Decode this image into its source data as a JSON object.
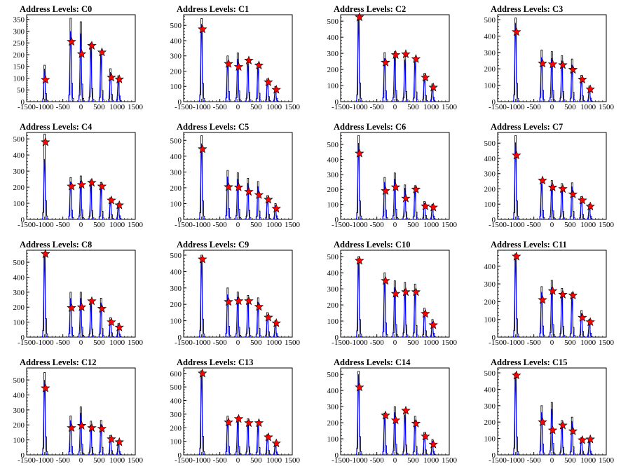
{
  "colors": {
    "histogram": "#000000",
    "fit": "#0000ff",
    "marker_fill": "#ff0000",
    "marker_stroke": "#000000"
  },
  "x_ticks": [
    "-1500",
    "-1000",
    "-500",
    "0",
    "500",
    "1000",
    "1500"
  ],
  "chart_data": [
    {
      "type": "bar",
      "title": "Address Levels: C0",
      "xlim": [
        -1500,
        1500
      ],
      "ylim": [
        0,
        370
      ],
      "yticks": [
        0,
        50,
        100,
        150,
        200,
        250,
        300,
        350
      ],
      "peaks": [
        {
          "x": -1000,
          "hist": 155,
          "fit": 140,
          "marker": 93
        },
        {
          "x": -280,
          "hist": 355,
          "fit": 300,
          "marker": 255
        },
        {
          "x": 0,
          "hist": 340,
          "fit": 290,
          "marker": 203
        },
        {
          "x": 280,
          "hist": 250,
          "fit": 230,
          "marker": 238
        },
        {
          "x": 560,
          "hist": 215,
          "fit": 200,
          "marker": 210
        },
        {
          "x": 820,
          "hist": 140,
          "fit": 125,
          "marker": 103
        },
        {
          "x": 1040,
          "hist": 110,
          "fit": 100,
          "marker": 95
        }
      ]
    },
    {
      "type": "bar",
      "title": "Address Levels: C1",
      "xlim": [
        -1500,
        1500
      ],
      "ylim": [
        0,
        570
      ],
      "yticks": [
        0,
        100,
        200,
        300,
        400,
        500
      ],
      "peaks": [
        {
          "x": -1000,
          "hist": 545,
          "fit": 510,
          "marker": 475
        },
        {
          "x": -280,
          "hist": 300,
          "fit": 260,
          "marker": 248
        },
        {
          "x": 0,
          "hist": 320,
          "fit": 280,
          "marker": 228
        },
        {
          "x": 280,
          "hist": 280,
          "fit": 250,
          "marker": 270
        },
        {
          "x": 560,
          "hist": 250,
          "fit": 230,
          "marker": 238
        },
        {
          "x": 820,
          "hist": 150,
          "fit": 135,
          "marker": 128
        },
        {
          "x": 1040,
          "hist": 100,
          "fit": 90,
          "marker": 78
        }
      ]
    },
    {
      "type": "bar",
      "title": "Address Levels: C2",
      "xlim": [
        -1500,
        1500
      ],
      "ylim": [
        0,
        540
      ],
      "yticks": [
        0,
        100,
        200,
        300,
        400,
        500
      ],
      "peaks": [
        {
          "x": -1000,
          "hist": 530,
          "fit": 515,
          "marker": 525
        },
        {
          "x": -280,
          "hist": 305,
          "fit": 270,
          "marker": 243
        },
        {
          "x": 0,
          "hist": 310,
          "fit": 280,
          "marker": 290
        },
        {
          "x": 280,
          "hist": 290,
          "fit": 260,
          "marker": 295
        },
        {
          "x": 560,
          "hist": 275,
          "fit": 250,
          "marker": 265
        },
        {
          "x": 820,
          "hist": 175,
          "fit": 155,
          "marker": 150
        },
        {
          "x": 1040,
          "hist": 110,
          "fit": 95,
          "marker": 88
        }
      ]
    },
    {
      "type": "bar",
      "title": "Address Levels: C3",
      "xlim": [
        -1500,
        1500
      ],
      "ylim": [
        0,
        530
      ],
      "yticks": [
        0,
        100,
        200,
        300,
        400,
        500
      ],
      "peaks": [
        {
          "x": -1000,
          "hist": 510,
          "fit": 480,
          "marker": 425
        },
        {
          "x": -280,
          "hist": 315,
          "fit": 270,
          "marker": 233
        },
        {
          "x": 0,
          "hist": 305,
          "fit": 265,
          "marker": 228
        },
        {
          "x": 280,
          "hist": 280,
          "fit": 250,
          "marker": 223
        },
        {
          "x": 560,
          "hist": 260,
          "fit": 225,
          "marker": 195
        },
        {
          "x": 820,
          "hist": 160,
          "fit": 140,
          "marker": 135
        },
        {
          "x": 1040,
          "hist": 95,
          "fit": 85,
          "marker": 75
        }
      ]
    },
    {
      "type": "bar",
      "title": "Address Levels: C4",
      "xlim": [
        -1500,
        1500
      ],
      "ylim": [
        0,
        540
      ],
      "yticks": [
        0,
        100,
        200,
        300,
        400,
        500
      ],
      "peaks": [
        {
          "x": -1000,
          "hist": 530,
          "fit": 375,
          "marker": 480
        },
        {
          "x": -280,
          "hist": 260,
          "fit": 235,
          "marker": 205
        },
        {
          "x": 0,
          "hist": 270,
          "fit": 240,
          "marker": 215
        },
        {
          "x": 280,
          "hist": 245,
          "fit": 220,
          "marker": 228
        },
        {
          "x": 560,
          "hist": 230,
          "fit": 210,
          "marker": 205
        },
        {
          "x": 820,
          "hist": 135,
          "fit": 120,
          "marker": 118
        },
        {
          "x": 1040,
          "hist": 100,
          "fit": 90,
          "marker": 88
        }
      ]
    },
    {
      "type": "bar",
      "title": "Address Levels: C5",
      "xlim": [
        -1500,
        1500
      ],
      "ylim": [
        0,
        550
      ],
      "yticks": [
        0,
        100,
        200,
        300,
        400,
        500
      ],
      "peaks": [
        {
          "x": -1000,
          "hist": 530,
          "fit": 480,
          "marker": 445
        },
        {
          "x": -280,
          "hist": 310,
          "fit": 270,
          "marker": 205
        },
        {
          "x": 0,
          "hist": 295,
          "fit": 255,
          "marker": 203
        },
        {
          "x": 280,
          "hist": 260,
          "fit": 230,
          "marker": 175
        },
        {
          "x": 560,
          "hist": 240,
          "fit": 210,
          "marker": 155
        },
        {
          "x": 820,
          "hist": 150,
          "fit": 130,
          "marker": 125
        },
        {
          "x": 1040,
          "hist": 100,
          "fit": 88,
          "marker": 68
        }
      ]
    },
    {
      "type": "bar",
      "title": "Address Levels: C6",
      "xlim": [
        -1500,
        1500
      ],
      "ylim": [
        0,
        580
      ],
      "yticks": [
        0,
        100,
        200,
        300,
        400,
        500
      ],
      "peaks": [
        {
          "x": -1000,
          "hist": 560,
          "fit": 510,
          "marker": 440
        },
        {
          "x": -280,
          "hist": 280,
          "fit": 250,
          "marker": 190
        },
        {
          "x": 0,
          "hist": 310,
          "fit": 270,
          "marker": 215
        },
        {
          "x": 280,
          "hist": 230,
          "fit": 210,
          "marker": 140
        },
        {
          "x": 560,
          "hist": 225,
          "fit": 205,
          "marker": 200
        },
        {
          "x": 820,
          "hist": 120,
          "fit": 110,
          "marker": 88
        },
        {
          "x": 1040,
          "hist": 100,
          "fit": 90,
          "marker": 80
        }
      ]
    },
    {
      "type": "bar",
      "title": "Address Levels: C7",
      "xlim": [
        -1500,
        1500
      ],
      "ylim": [
        0,
        570
      ],
      "yticks": [
        0,
        100,
        200,
        300,
        400,
        500
      ],
      "peaks": [
        {
          "x": -1000,
          "hist": 550,
          "fit": 505,
          "marker": 420
        },
        {
          "x": -280,
          "hist": 265,
          "fit": 235,
          "marker": 255
        },
        {
          "x": 0,
          "hist": 255,
          "fit": 225,
          "marker": 210
        },
        {
          "x": 280,
          "hist": 235,
          "fit": 210,
          "marker": 200
        },
        {
          "x": 560,
          "hist": 240,
          "fit": 215,
          "marker": 165
        },
        {
          "x": 820,
          "hist": 150,
          "fit": 135,
          "marker": 125
        },
        {
          "x": 1040,
          "hist": 100,
          "fit": 90,
          "marker": 85
        }
      ]
    },
    {
      "type": "bar",
      "title": "Address Levels: C8",
      "xlim": [
        -1500,
        1500
      ],
      "ylim": [
        0,
        580
      ],
      "yticks": [
        0,
        100,
        200,
        300,
        400,
        500
      ],
      "peaks": [
        {
          "x": -1000,
          "hist": 560,
          "fit": 540,
          "marker": 555
        },
        {
          "x": -280,
          "hist": 300,
          "fit": 260,
          "marker": 195
        },
        {
          "x": 0,
          "hist": 300,
          "fit": 260,
          "marker": 200
        },
        {
          "x": 280,
          "hist": 250,
          "fit": 225,
          "marker": 240
        },
        {
          "x": 560,
          "hist": 260,
          "fit": 230,
          "marker": 190
        },
        {
          "x": 820,
          "hist": 130,
          "fit": 115,
          "marker": 100
        },
        {
          "x": 1040,
          "hist": 90,
          "fit": 80,
          "marker": 65
        }
      ]
    },
    {
      "type": "bar",
      "title": "Address Levels: C9",
      "xlim": [
        -1500,
        1500
      ],
      "ylim": [
        0,
        530
      ],
      "yticks": [
        0,
        100,
        200,
        300,
        400,
        500
      ],
      "peaks": [
        {
          "x": -1000,
          "hist": 500,
          "fit": 480,
          "marker": 475
        },
        {
          "x": -280,
          "hist": 300,
          "fit": 260,
          "marker": 215
        },
        {
          "x": 0,
          "hist": 275,
          "fit": 245,
          "marker": 220
        },
        {
          "x": 280,
          "hist": 255,
          "fit": 230,
          "marker": 220
        },
        {
          "x": 560,
          "hist": 240,
          "fit": 215,
          "marker": 185
        },
        {
          "x": 820,
          "hist": 150,
          "fit": 135,
          "marker": 120
        },
        {
          "x": 1040,
          "hist": 100,
          "fit": 90,
          "marker": 85
        }
      ]
    },
    {
      "type": "bar",
      "title": "Address Levels: C10",
      "xlim": [
        -1500,
        1500
      ],
      "ylim": [
        0,
        540
      ],
      "yticks": [
        0,
        100,
        200,
        300,
        400,
        500
      ],
      "peaks": [
        {
          "x": -1000,
          "hist": 500,
          "fit": 480,
          "marker": 475
        },
        {
          "x": -280,
          "hist": 400,
          "fit": 350,
          "marker": 350
        },
        {
          "x": 0,
          "hist": 350,
          "fit": 310,
          "marker": 270
        },
        {
          "x": 280,
          "hist": 340,
          "fit": 300,
          "marker": 280
        },
        {
          "x": 560,
          "hist": 330,
          "fit": 295,
          "marker": 280
        },
        {
          "x": 820,
          "hist": 180,
          "fit": 160,
          "marker": 145
        },
        {
          "x": 1040,
          "hist": 110,
          "fit": 95,
          "marker": 75
        }
      ]
    },
    {
      "type": "bar",
      "title": "Address Levels: C11",
      "xlim": [
        -1500,
        1500
      ],
      "ylim": [
        0,
        490
      ],
      "yticks": [
        0,
        100,
        200,
        300,
        400
      ],
      "peaks": [
        {
          "x": -1000,
          "hist": 470,
          "fit": 450,
          "marker": 455
        },
        {
          "x": -280,
          "hist": 285,
          "fit": 255,
          "marker": 210
        },
        {
          "x": 0,
          "hist": 320,
          "fit": 280,
          "marker": 260
        },
        {
          "x": 280,
          "hist": 275,
          "fit": 250,
          "marker": 240
        },
        {
          "x": 560,
          "hist": 250,
          "fit": 225,
          "marker": 235
        },
        {
          "x": 820,
          "hist": 150,
          "fit": 135,
          "marker": 110
        },
        {
          "x": 1040,
          "hist": 100,
          "fit": 90,
          "marker": 85
        }
      ]
    },
    {
      "type": "bar",
      "title": "Address Levels: C12",
      "xlim": [
        -1500,
        1500
      ],
      "ylim": [
        0,
        580
      ],
      "yticks": [
        0,
        100,
        200,
        300,
        400,
        500
      ],
      "peaks": [
        {
          "x": -1000,
          "hist": 550,
          "fit": 500,
          "marker": 445
        },
        {
          "x": -280,
          "hist": 260,
          "fit": 230,
          "marker": 180
        },
        {
          "x": 0,
          "hist": 320,
          "fit": 280,
          "marker": 195
        },
        {
          "x": 280,
          "hist": 225,
          "fit": 200,
          "marker": 180
        },
        {
          "x": 560,
          "hist": 230,
          "fit": 205,
          "marker": 175
        },
        {
          "x": 820,
          "hist": 130,
          "fit": 115,
          "marker": 105
        },
        {
          "x": 1040,
          "hist": 95,
          "fit": 85,
          "marker": 85
        }
      ]
    },
    {
      "type": "bar",
      "title": "Address Levels: C13",
      "xlim": [
        -1500,
        1500
      ],
      "ylim": [
        0,
        640
      ],
      "yticks": [
        0,
        100,
        200,
        300,
        400,
        500,
        600
      ],
      "peaks": [
        {
          "x": -1000,
          "hist": 620,
          "fit": 600,
          "marker": 600
        },
        {
          "x": -280,
          "hist": 285,
          "fit": 255,
          "marker": 240
        },
        {
          "x": 0,
          "hist": 280,
          "fit": 250,
          "marker": 265
        },
        {
          "x": 280,
          "hist": 265,
          "fit": 240,
          "marker": 235
        },
        {
          "x": 560,
          "hist": 245,
          "fit": 220,
          "marker": 235
        },
        {
          "x": 820,
          "hist": 150,
          "fit": 135,
          "marker": 130
        },
        {
          "x": 1040,
          "hist": 95,
          "fit": 85,
          "marker": 85
        }
      ]
    },
    {
      "type": "bar",
      "title": "Address Levels: C14",
      "xlim": [
        -1500,
        1500
      ],
      "ylim": [
        0,
        540
      ],
      "yticks": [
        0,
        100,
        200,
        300,
        400,
        500
      ],
      "peaks": [
        {
          "x": -1000,
          "hist": 520,
          "fit": 500,
          "marker": 420
        },
        {
          "x": -280,
          "hist": 260,
          "fit": 235,
          "marker": 245
        },
        {
          "x": 0,
          "hist": 300,
          "fit": 265,
          "marker": 215
        },
        {
          "x": 280,
          "hist": 280,
          "fit": 250,
          "marker": 275
        },
        {
          "x": 560,
          "hist": 240,
          "fit": 215,
          "marker": 195
        },
        {
          "x": 820,
          "hist": 140,
          "fit": 125,
          "marker": 115
        },
        {
          "x": 1040,
          "hist": 95,
          "fit": 85,
          "marker": 65
        }
      ]
    },
    {
      "type": "bar",
      "title": "Address Levels: C15",
      "xlim": [
        -1500,
        1500
      ],
      "ylim": [
        0,
        530
      ],
      "yticks": [
        0,
        100,
        200,
        300,
        400,
        500
      ],
      "peaks": [
        {
          "x": -1000,
          "hist": 500,
          "fit": 480,
          "marker": 485
        },
        {
          "x": -280,
          "hist": 300,
          "fit": 260,
          "marker": 200
        },
        {
          "x": 0,
          "hist": 320,
          "fit": 280,
          "marker": 150
        },
        {
          "x": 280,
          "hist": 210,
          "fit": 190,
          "marker": 180
        },
        {
          "x": 560,
          "hist": 230,
          "fit": 205,
          "marker": 145
        },
        {
          "x": 820,
          "hist": 105,
          "fit": 95,
          "marker": 90
        },
        {
          "x": 1040,
          "hist": 100,
          "fit": 90,
          "marker": 95
        }
      ]
    }
  ]
}
